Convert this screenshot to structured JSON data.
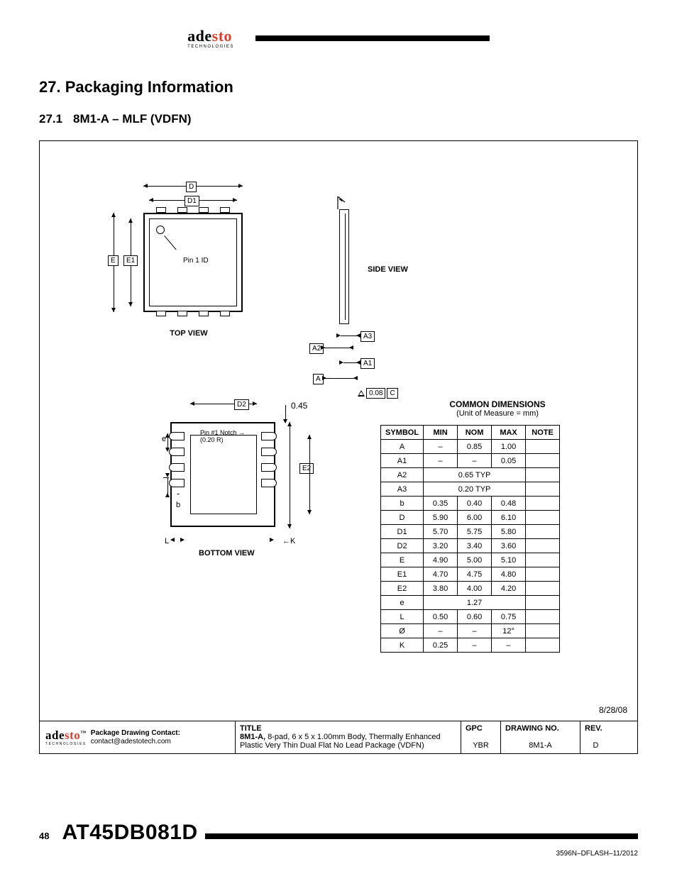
{
  "header": {
    "logo_black": "ade",
    "logo_red": "sto",
    "logo_sub": "TECHNOLOGIES"
  },
  "section": {
    "number": "27.",
    "title": "Packaging Information",
    "sub_number": "27.1",
    "sub_title": "8M1-A – MLF (VDFN)"
  },
  "diagram": {
    "top_view_label": "TOP VIEW",
    "side_view_label": "SIDE VIEW",
    "bottom_view_label": "BOTTOM VIEW",
    "pin1_id": "Pin 1 ID",
    "pin1_notch": "Pin #1 Notch",
    "pin1_notch_r": "(0.20 R)",
    "dim_D": "D",
    "dim_D1": "D1",
    "dim_D2": "D2",
    "dim_E": "E",
    "dim_E1": "E1",
    "dim_E2": "E2",
    "dim_A": "A",
    "dim_A1": "A1",
    "dim_A2": "A2",
    "dim_A3": "A3",
    "dim_e": "e",
    "dim_b": "b",
    "dim_L": "L",
    "dim_K": "K",
    "dim_045": "0.45",
    "tol_val": "0.08",
    "tol_c": "C"
  },
  "dimensions": {
    "title": "COMMON DIMENSIONS",
    "unit": "(Unit of Measure = mm)",
    "headers": {
      "symbol": "SYMBOL",
      "min": "MIN",
      "nom": "NOM",
      "max": "MAX",
      "note": "NOTE"
    },
    "rows": [
      {
        "sym": "A",
        "min": "–",
        "nom": "0.85",
        "max": "1.00",
        "note": ""
      },
      {
        "sym": "A1",
        "min": "–",
        "nom": "–",
        "max": "0.05",
        "note": ""
      },
      {
        "sym": "A2",
        "min": "",
        "nom": "0.65 TYP",
        "max": "",
        "note": "",
        "span": true
      },
      {
        "sym": "A3",
        "min": "",
        "nom": "0.20 TYP",
        "max": "",
        "note": "",
        "span": true
      },
      {
        "sym": "b",
        "min": "0.35",
        "nom": "0.40",
        "max": "0.48",
        "note": ""
      },
      {
        "sym": "D",
        "min": "5.90",
        "nom": "6.00",
        "max": "6.10",
        "note": ""
      },
      {
        "sym": "D1",
        "min": "5.70",
        "nom": "5.75",
        "max": "5.80",
        "note": ""
      },
      {
        "sym": "D2",
        "min": "3.20",
        "nom": "3.40",
        "max": "3.60",
        "note": ""
      },
      {
        "sym": "E",
        "min": "4.90",
        "nom": "5.00",
        "max": "5.10",
        "note": ""
      },
      {
        "sym": "E1",
        "min": "4.70",
        "nom": "4.75",
        "max": "4.80",
        "note": ""
      },
      {
        "sym": "E2",
        "min": "3.80",
        "nom": "4.00",
        "max": "4.20",
        "note": ""
      },
      {
        "sym": "e",
        "min": "",
        "nom": "1.27",
        "max": "",
        "note": "",
        "span": true
      },
      {
        "sym": "L",
        "min": "0.50",
        "nom": "0.60",
        "max": "0.75",
        "note": ""
      },
      {
        "sym": "Ø",
        "min": "–",
        "nom": "–",
        "max": "12°",
        "note": ""
      },
      {
        "sym": "K",
        "min": "0.25",
        "nom": "–",
        "max": "–",
        "note": ""
      }
    ],
    "date": "8/28/08"
  },
  "titleblock": {
    "contact_label": "Package Drawing Contact:",
    "contact_email": "contact@adestotech.com",
    "title_hdr": "TITLE",
    "title_bold": "8M1-A,",
    "title_text": " 8-pad, 6 x 5 x 1.00mm Body, Thermally Enhanced Plastic Very Thin Dual Flat No Lead Package (VDFN)",
    "gpc_hdr": "GPC",
    "gpc_val": "YBR",
    "dno_hdr": "DRAWING NO.",
    "dno_val": "8M1-A",
    "rev_hdr": "REV.",
    "rev_val": "D"
  },
  "footer": {
    "page": "48",
    "part": "AT45DB081D",
    "docid": "3596N–DFLASH–11/2012"
  }
}
